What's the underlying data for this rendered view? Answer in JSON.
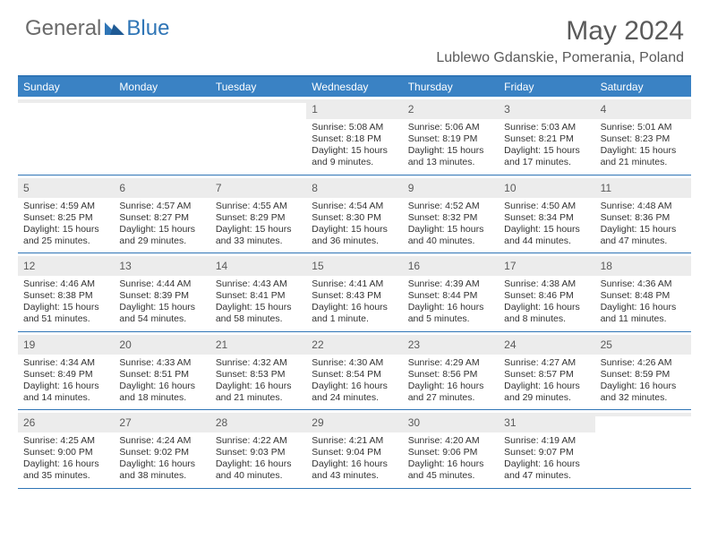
{
  "brand": {
    "part1": "General",
    "part2": "Blue"
  },
  "title": "May 2024",
  "location": "Lublewo Gdanskie, Pomerania, Poland",
  "colors": {
    "header_bg": "#3a82c4",
    "border": "#2f75b6",
    "daynum_bg": "#ececec",
    "text": "#333333",
    "logo_gray": "#6a6a6a",
    "logo_blue": "#2f75b6"
  },
  "day_labels": [
    "Sunday",
    "Monday",
    "Tuesday",
    "Wednesday",
    "Thursday",
    "Friday",
    "Saturday"
  ],
  "weeks": [
    [
      {
        "n": "",
        "sr": "",
        "ss": "",
        "dl": ""
      },
      {
        "n": "",
        "sr": "",
        "ss": "",
        "dl": ""
      },
      {
        "n": "",
        "sr": "",
        "ss": "",
        "dl": ""
      },
      {
        "n": "1",
        "sr": "Sunrise: 5:08 AM",
        "ss": "Sunset: 8:18 PM",
        "dl": "Daylight: 15 hours and 9 minutes."
      },
      {
        "n": "2",
        "sr": "Sunrise: 5:06 AM",
        "ss": "Sunset: 8:19 PM",
        "dl": "Daylight: 15 hours and 13 minutes."
      },
      {
        "n": "3",
        "sr": "Sunrise: 5:03 AM",
        "ss": "Sunset: 8:21 PM",
        "dl": "Daylight: 15 hours and 17 minutes."
      },
      {
        "n": "4",
        "sr": "Sunrise: 5:01 AM",
        "ss": "Sunset: 8:23 PM",
        "dl": "Daylight: 15 hours and 21 minutes."
      }
    ],
    [
      {
        "n": "5",
        "sr": "Sunrise: 4:59 AM",
        "ss": "Sunset: 8:25 PM",
        "dl": "Daylight: 15 hours and 25 minutes."
      },
      {
        "n": "6",
        "sr": "Sunrise: 4:57 AM",
        "ss": "Sunset: 8:27 PM",
        "dl": "Daylight: 15 hours and 29 minutes."
      },
      {
        "n": "7",
        "sr": "Sunrise: 4:55 AM",
        "ss": "Sunset: 8:29 PM",
        "dl": "Daylight: 15 hours and 33 minutes."
      },
      {
        "n": "8",
        "sr": "Sunrise: 4:54 AM",
        "ss": "Sunset: 8:30 PM",
        "dl": "Daylight: 15 hours and 36 minutes."
      },
      {
        "n": "9",
        "sr": "Sunrise: 4:52 AM",
        "ss": "Sunset: 8:32 PM",
        "dl": "Daylight: 15 hours and 40 minutes."
      },
      {
        "n": "10",
        "sr": "Sunrise: 4:50 AM",
        "ss": "Sunset: 8:34 PM",
        "dl": "Daylight: 15 hours and 44 minutes."
      },
      {
        "n": "11",
        "sr": "Sunrise: 4:48 AM",
        "ss": "Sunset: 8:36 PM",
        "dl": "Daylight: 15 hours and 47 minutes."
      }
    ],
    [
      {
        "n": "12",
        "sr": "Sunrise: 4:46 AM",
        "ss": "Sunset: 8:38 PM",
        "dl": "Daylight: 15 hours and 51 minutes."
      },
      {
        "n": "13",
        "sr": "Sunrise: 4:44 AM",
        "ss": "Sunset: 8:39 PM",
        "dl": "Daylight: 15 hours and 54 minutes."
      },
      {
        "n": "14",
        "sr": "Sunrise: 4:43 AM",
        "ss": "Sunset: 8:41 PM",
        "dl": "Daylight: 15 hours and 58 minutes."
      },
      {
        "n": "15",
        "sr": "Sunrise: 4:41 AM",
        "ss": "Sunset: 8:43 PM",
        "dl": "Daylight: 16 hours and 1 minute."
      },
      {
        "n": "16",
        "sr": "Sunrise: 4:39 AM",
        "ss": "Sunset: 8:44 PM",
        "dl": "Daylight: 16 hours and 5 minutes."
      },
      {
        "n": "17",
        "sr": "Sunrise: 4:38 AM",
        "ss": "Sunset: 8:46 PM",
        "dl": "Daylight: 16 hours and 8 minutes."
      },
      {
        "n": "18",
        "sr": "Sunrise: 4:36 AM",
        "ss": "Sunset: 8:48 PM",
        "dl": "Daylight: 16 hours and 11 minutes."
      }
    ],
    [
      {
        "n": "19",
        "sr": "Sunrise: 4:34 AM",
        "ss": "Sunset: 8:49 PM",
        "dl": "Daylight: 16 hours and 14 minutes."
      },
      {
        "n": "20",
        "sr": "Sunrise: 4:33 AM",
        "ss": "Sunset: 8:51 PM",
        "dl": "Daylight: 16 hours and 18 minutes."
      },
      {
        "n": "21",
        "sr": "Sunrise: 4:32 AM",
        "ss": "Sunset: 8:53 PM",
        "dl": "Daylight: 16 hours and 21 minutes."
      },
      {
        "n": "22",
        "sr": "Sunrise: 4:30 AM",
        "ss": "Sunset: 8:54 PM",
        "dl": "Daylight: 16 hours and 24 minutes."
      },
      {
        "n": "23",
        "sr": "Sunrise: 4:29 AM",
        "ss": "Sunset: 8:56 PM",
        "dl": "Daylight: 16 hours and 27 minutes."
      },
      {
        "n": "24",
        "sr": "Sunrise: 4:27 AM",
        "ss": "Sunset: 8:57 PM",
        "dl": "Daylight: 16 hours and 29 minutes."
      },
      {
        "n": "25",
        "sr": "Sunrise: 4:26 AM",
        "ss": "Sunset: 8:59 PM",
        "dl": "Daylight: 16 hours and 32 minutes."
      }
    ],
    [
      {
        "n": "26",
        "sr": "Sunrise: 4:25 AM",
        "ss": "Sunset: 9:00 PM",
        "dl": "Daylight: 16 hours and 35 minutes."
      },
      {
        "n": "27",
        "sr": "Sunrise: 4:24 AM",
        "ss": "Sunset: 9:02 PM",
        "dl": "Daylight: 16 hours and 38 minutes."
      },
      {
        "n": "28",
        "sr": "Sunrise: 4:22 AM",
        "ss": "Sunset: 9:03 PM",
        "dl": "Daylight: 16 hours and 40 minutes."
      },
      {
        "n": "29",
        "sr": "Sunrise: 4:21 AM",
        "ss": "Sunset: 9:04 PM",
        "dl": "Daylight: 16 hours and 43 minutes."
      },
      {
        "n": "30",
        "sr": "Sunrise: 4:20 AM",
        "ss": "Sunset: 9:06 PM",
        "dl": "Daylight: 16 hours and 45 minutes."
      },
      {
        "n": "31",
        "sr": "Sunrise: 4:19 AM",
        "ss": "Sunset: 9:07 PM",
        "dl": "Daylight: 16 hours and 47 minutes."
      },
      {
        "n": "",
        "sr": "",
        "ss": "",
        "dl": ""
      }
    ]
  ]
}
